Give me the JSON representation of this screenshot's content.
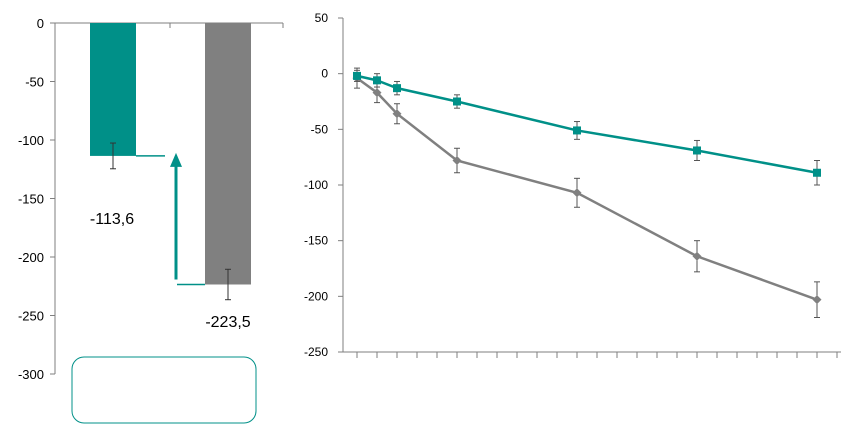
{
  "colors": {
    "teal": "#009088",
    "gray": "#808080",
    "axis": "#7f7f7f",
    "black": "#000000"
  },
  "chart_data": [
    {
      "type": "bar",
      "categories": [
        "",
        ""
      ],
      "values": [
        -113.6,
        -223.5
      ],
      "errors": [
        11,
        13
      ],
      "data_labels": [
        "-113,6",
        "-223,5"
      ],
      "bar_colors": [
        "#009088",
        "#808080"
      ],
      "ylim": [
        -300,
        0
      ],
      "yticks": [
        0,
        -50,
        -100,
        -150,
        -200,
        -250,
        -300
      ],
      "ytick_labels": [
        "0",
        "-50",
        "-100",
        "-150",
        "-200",
        "-250",
        "-300"
      ],
      "grid": false,
      "annotations": [
        "upward arrow from the gray bar level to the teal bar level",
        "empty rounded box below the bars"
      ]
    },
    {
      "type": "line",
      "x": [
        0,
        1,
        2,
        5,
        11,
        17,
        23
      ],
      "series": [
        {
          "marker": "square",
          "color": "#009088",
          "values": [
            -2,
            -6,
            -13,
            -25,
            -51,
            -69,
            -89
          ],
          "errors": [
            5,
            6,
            6,
            6,
            8,
            9,
            11
          ]
        },
        {
          "marker": "diamond",
          "color": "#808080",
          "values": [
            -4,
            -17,
            -36,
            -78,
            -107,
            -164,
            -203
          ],
          "errors": [
            9,
            9,
            9,
            11,
            13,
            14,
            16
          ]
        }
      ],
      "x_minor_ticks": 24,
      "ylim": [
        -250,
        50
      ],
      "yticks": [
        50,
        0,
        -50,
        -100,
        -150,
        -200,
        -250
      ],
      "ytick_labels": [
        "50",
        "0",
        "-50",
        "-100",
        "-150",
        "-200",
        "-250"
      ],
      "xtick_labels": [],
      "grid": false
    }
  ]
}
